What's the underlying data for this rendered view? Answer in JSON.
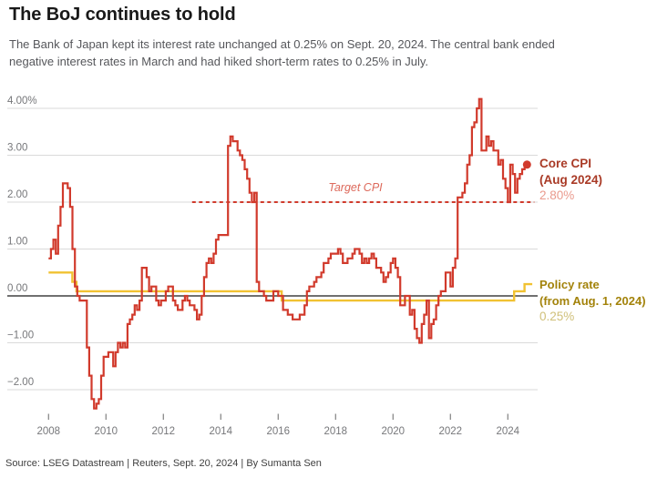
{
  "header": {
    "title": "The BoJ continues to hold",
    "subtitle_line1": "The Bank of Japan kept its interest rate unchanged at 0.25% on Sept. 20, 2024. The central bank ended",
    "subtitle_line2": "negative interest rates in March and had hiked short-term rates to 0.25% in July."
  },
  "annotations": {
    "target_label": "Target CPI",
    "core_cpi": {
      "line1": "Core CPI",
      "line2": "(Aug 2024)",
      "value": "2.80%"
    },
    "policy": {
      "line1": "Policy rate",
      "line2": "(from Aug. 1, 2024)",
      "value": "0.25%"
    }
  },
  "source": "Source: LSEG Datastream | Reuters, Sept. 20, 2024 | By Sumanta Sen",
  "colors": {
    "core_red": "#d13a2c",
    "annotation_red": "#a93a26",
    "value_red": "#ea9a8d",
    "target_label_red": "#dd6a5c",
    "policy_yellow": "#f1c232",
    "annotation_gold": "#a3830b",
    "value_gold": "#d0c07a",
    "grid_line": "#dadada",
    "zero_line": "#404040",
    "axis_text": "#76777a",
    "tick_mark": "#8a8a8a",
    "title_text": "#191919",
    "subtitle_text": "#56575b",
    "source_text": "#3e3e3e"
  },
  "chart_data": {
    "type": "line",
    "subtype": "step",
    "title": "The BoJ continues to hold",
    "xlabel": "",
    "ylabel": "%",
    "ylim": [
      -2.6,
      4.45
    ],
    "grid": true,
    "y_ticks": [
      {
        "value": 4,
        "label": "4.00%"
      },
      {
        "value": 3,
        "label": "3.00"
      },
      {
        "value": 2,
        "label": "2.00"
      },
      {
        "value": 1,
        "label": "1.00"
      },
      {
        "value": 0,
        "label": "0.00"
      },
      {
        "value": -1,
        "label": "−1.00"
      },
      {
        "value": -2,
        "label": "−2.00"
      }
    ],
    "x_ticks": [
      {
        "t": 2008,
        "label": "2008"
      },
      {
        "t": 2010,
        "label": "2010"
      },
      {
        "t": 2012,
        "label": "2012"
      },
      {
        "t": 2014,
        "label": "2014"
      },
      {
        "t": 2016,
        "label": "2016"
      },
      {
        "t": 2018,
        "label": "2018"
      },
      {
        "t": 2020,
        "label": "2020"
      },
      {
        "t": 2022,
        "label": "2022"
      },
      {
        "t": 2024,
        "label": "2024"
      }
    ],
    "series": [
      {
        "id": "core_cpi",
        "name": "Core CPI (Aug 2024)",
        "color": "#d13a2c",
        "unit": "% y/y",
        "start_year": 2008,
        "start_month": 1,
        "monthly_values": [
          0.8,
          1.0,
          1.2,
          0.9,
          1.5,
          1.9,
          2.4,
          2.4,
          2.3,
          1.9,
          1.0,
          0.2,
          0.0,
          -0.1,
          -0.1,
          -0.1,
          -1.1,
          -1.7,
          -2.2,
          -2.4,
          -2.3,
          -2.2,
          -1.7,
          -1.3,
          -1.3,
          -1.2,
          -1.2,
          -1.5,
          -1.2,
          -1.0,
          -1.1,
          -1.0,
          -1.1,
          -0.6,
          -0.5,
          -0.4,
          -0.2,
          -0.3,
          -0.1,
          0.6,
          0.6,
          0.4,
          0.1,
          0.2,
          0.2,
          -0.1,
          -0.2,
          -0.1,
          -0.1,
          0.1,
          0.2,
          0.2,
          -0.1,
          -0.2,
          -0.3,
          -0.3,
          -0.1,
          0.0,
          -0.1,
          -0.2,
          -0.2,
          -0.3,
          -0.5,
          -0.4,
          0.0,
          0.4,
          0.7,
          0.8,
          0.7,
          0.9,
          1.2,
          1.3,
          1.3,
          1.3,
          1.3,
          3.2,
          3.4,
          3.3,
          3.3,
          3.1,
          3.0,
          2.9,
          2.7,
          2.5,
          2.2,
          2.0,
          2.2,
          0.3,
          0.1,
          0.1,
          0.0,
          -0.1,
          -0.1,
          -0.1,
          0.1,
          0.1,
          0.0,
          0.0,
          -0.3,
          -0.3,
          -0.4,
          -0.4,
          -0.5,
          -0.5,
          -0.5,
          -0.4,
          -0.4,
          -0.2,
          0.1,
          0.2,
          0.2,
          0.3,
          0.4,
          0.4,
          0.5,
          0.7,
          0.7,
          0.8,
          0.9,
          0.9,
          0.9,
          1.0,
          0.9,
          0.7,
          0.7,
          0.8,
          0.8,
          0.9,
          1.0,
          1.0,
          0.9,
          0.7,
          0.8,
          0.7,
          0.8,
          0.9,
          0.8,
          0.6,
          0.6,
          0.5,
          0.3,
          0.4,
          0.5,
          0.7,
          0.8,
          0.6,
          0.4,
          -0.2,
          -0.2,
          0.0,
          0.0,
          -0.4,
          -0.3,
          -0.7,
          -0.9,
          -1.0,
          -0.6,
          -0.4,
          -0.1,
          -0.9,
          -0.6,
          -0.5,
          -0.2,
          0.0,
          0.1,
          0.1,
          0.5,
          0.5,
          0.2,
          0.6,
          0.8,
          2.1,
          2.1,
          2.2,
          2.4,
          2.8,
          3.0,
          3.6,
          3.7,
          4.0,
          4.2,
          3.1,
          3.1,
          3.4,
          3.2,
          3.3,
          3.1,
          3.1,
          2.8,
          2.9,
          2.5,
          2.3,
          2.0,
          2.8,
          2.6,
          2.2,
          2.5,
          2.6,
          2.7,
          2.8
        ],
        "last_value_label": "2.80%"
      },
      {
        "id": "policy_rate",
        "name": "Policy rate (from Aug. 1, 2024)",
        "color": "#f1c232",
        "unit": "%",
        "steps": [
          {
            "t": 2008.0,
            "value": 0.5
          },
          {
            "t": 2008.83,
            "value": 0.3
          },
          {
            "t": 2008.97,
            "value": 0.1
          },
          {
            "t": 2016.12,
            "value": -0.1
          },
          {
            "t": 2024.22,
            "value": 0.1
          },
          {
            "t": 2024.58,
            "value": 0.25
          }
        ],
        "end_t": 2024.85,
        "last_value_label": "0.25%"
      }
    ],
    "reference_line": {
      "label": "Target CPI",
      "value": 2.0,
      "from_t": 2013.0,
      "to_t": 2024.92,
      "style": "dashed",
      "color": "#d13a2c"
    },
    "end_marker": {
      "series": "core_cpi",
      "t": 2024.667,
      "value": 2.8
    }
  }
}
